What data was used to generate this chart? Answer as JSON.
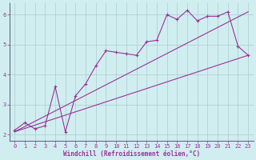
{
  "bg_color": "#d0eef0",
  "line_color": "#993399",
  "grid_color": "#aacccc",
  "spine_color": "#666688",
  "xlabel": "Windchill (Refroidissement éolien,°C)",
  "xlabel_color": "#993399",
  "tick_color": "#993399",
  "xlim": [
    -0.5,
    23.5
  ],
  "ylim": [
    1.8,
    6.4
  ],
  "yticks": [
    2,
    3,
    4,
    5,
    6
  ],
  "xticks": [
    0,
    1,
    2,
    3,
    4,
    5,
    6,
    7,
    8,
    9,
    10,
    11,
    12,
    13,
    14,
    15,
    16,
    17,
    18,
    19,
    20,
    21,
    22,
    23
  ],
  "series1_x": [
    0,
    1,
    2,
    3,
    4,
    5,
    6,
    7,
    8,
    9,
    10,
    11,
    12,
    13,
    14,
    15,
    16,
    17,
    18,
    19,
    20,
    21,
    22,
    23
  ],
  "series1_y": [
    2.15,
    2.4,
    2.2,
    2.3,
    3.6,
    2.1,
    3.3,
    3.7,
    4.3,
    4.8,
    4.75,
    4.7,
    4.65,
    5.1,
    5.15,
    6.0,
    5.85,
    6.15,
    5.8,
    5.95,
    5.95,
    6.1,
    4.95,
    4.65
  ],
  "series2_x": [
    0,
    23
  ],
  "series2_y": [
    2.1,
    4.65
  ],
  "series3_x": [
    0,
    23
  ],
  "series3_y": [
    2.1,
    6.1
  ],
  "lw": 0.8,
  "marker_size": 3.5,
  "tick_fontsize": 5.0,
  "xlabel_fontsize": 5.5
}
